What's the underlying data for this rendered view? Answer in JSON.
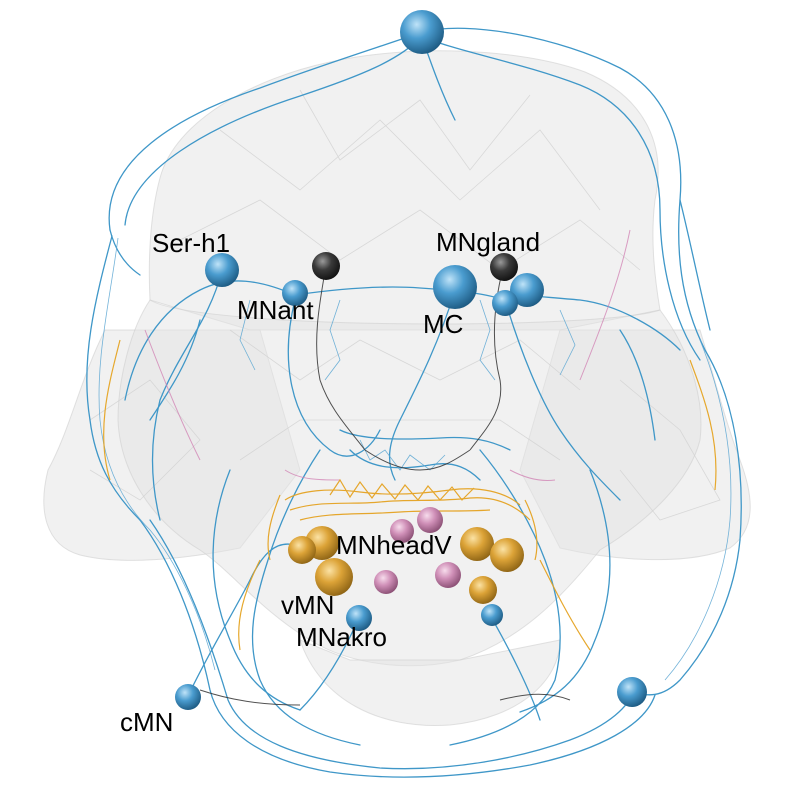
{
  "labels": {
    "ser_h1": "Ser-h1",
    "mnant": "MNant",
    "mngland": "MNgland",
    "mc": "MC",
    "mnheadv": "MNheadV",
    "vmn": "vMN",
    "mnakro": "MNakro",
    "cmn": "cMN"
  },
  "colors": {
    "blue": "#4a9ccf",
    "dark": "#2a2a2a",
    "orange": "#e3a52a",
    "pink": "#d68fb9",
    "body": "#e2e2e2"
  }
}
